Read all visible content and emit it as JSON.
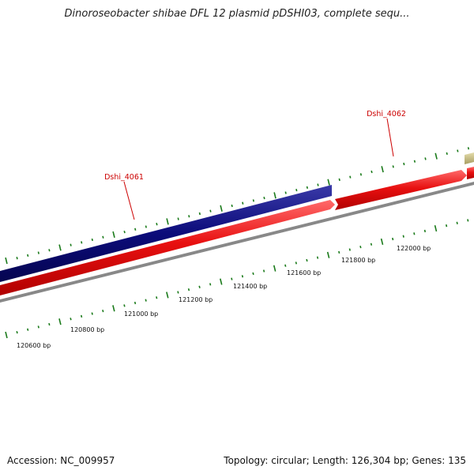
{
  "title": "Dinoroseobacter shibae DFL 12 plasmid pDSHI03, complete sequ...",
  "accession": "Accession: NC_009957",
  "summary": "Topology: circular; Length: 126,304 bp; Genes: 135",
  "features": [
    {
      "id": "Dshi_4061",
      "label": "Dshi_4061",
      "strand": "forward",
      "color": "#0b0b7a"
    },
    {
      "id": "Dshi_4062",
      "label": "Dshi_4062",
      "strand": "forward",
      "color": "#e81010"
    }
  ],
  "scale_labels": [
    "120600 bp",
    "120800 bp",
    "121000 bp",
    "121200 bp",
    "121400 bp",
    "121600 bp",
    "121800 bp",
    "122000 bp"
  ],
  "colors": {
    "gc_skew": "#1a7a1a",
    "backbone": "#888888",
    "cds_forward": "#e81010",
    "gene_label": "#cc0000",
    "other_feature": "#c8c08a"
  }
}
